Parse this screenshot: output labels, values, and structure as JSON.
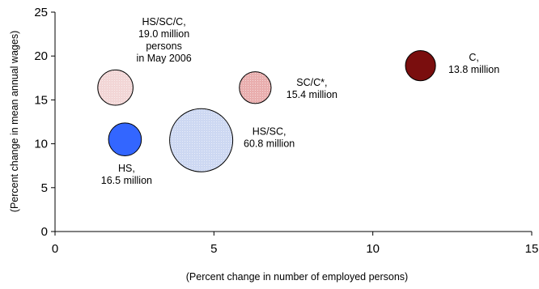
{
  "chart_data": {
    "type": "scatter",
    "xlabel": "(Percent change in number of employed persons)",
    "ylabel": "(Percent change in mean annual wages)",
    "xlim": [
      0,
      15
    ],
    "ylim": [
      0,
      25
    ],
    "x_ticks": [
      "0",
      "5",
      "10",
      "15"
    ],
    "y_ticks": [
      "0",
      "5",
      "10",
      "15",
      "20",
      "25"
    ],
    "grid": false,
    "points": [
      {
        "x": 1.9,
        "y": 16.4,
        "size": 19.0,
        "fill": "#f2d6d6",
        "pattern": true,
        "label_lines": [
          "HS/SC/C,",
          "19.0 million",
          "persons",
          "in May 2006"
        ]
      },
      {
        "x": 2.2,
        "y": 10.5,
        "size": 16.5,
        "fill": "#3366ff",
        "pattern": false,
        "label_lines": [
          "HS,",
          "16.5 million"
        ]
      },
      {
        "x": 4.6,
        "y": 10.4,
        "size": 60.8,
        "fill": "#cdd8f2",
        "pattern": true,
        "label_lines": [
          "HS/SC,",
          "60.8 million"
        ]
      },
      {
        "x": 6.3,
        "y": 16.4,
        "size": 15.4,
        "fill": "#e9aeae",
        "pattern": true,
        "label_lines": [
          "SC/C*,",
          "15.4 million"
        ]
      },
      {
        "x": 11.5,
        "y": 18.9,
        "size": 13.8,
        "fill": "#7a0e0e",
        "pattern": false,
        "label_lines": [
          "C,",
          "13.8 million"
        ]
      }
    ]
  }
}
